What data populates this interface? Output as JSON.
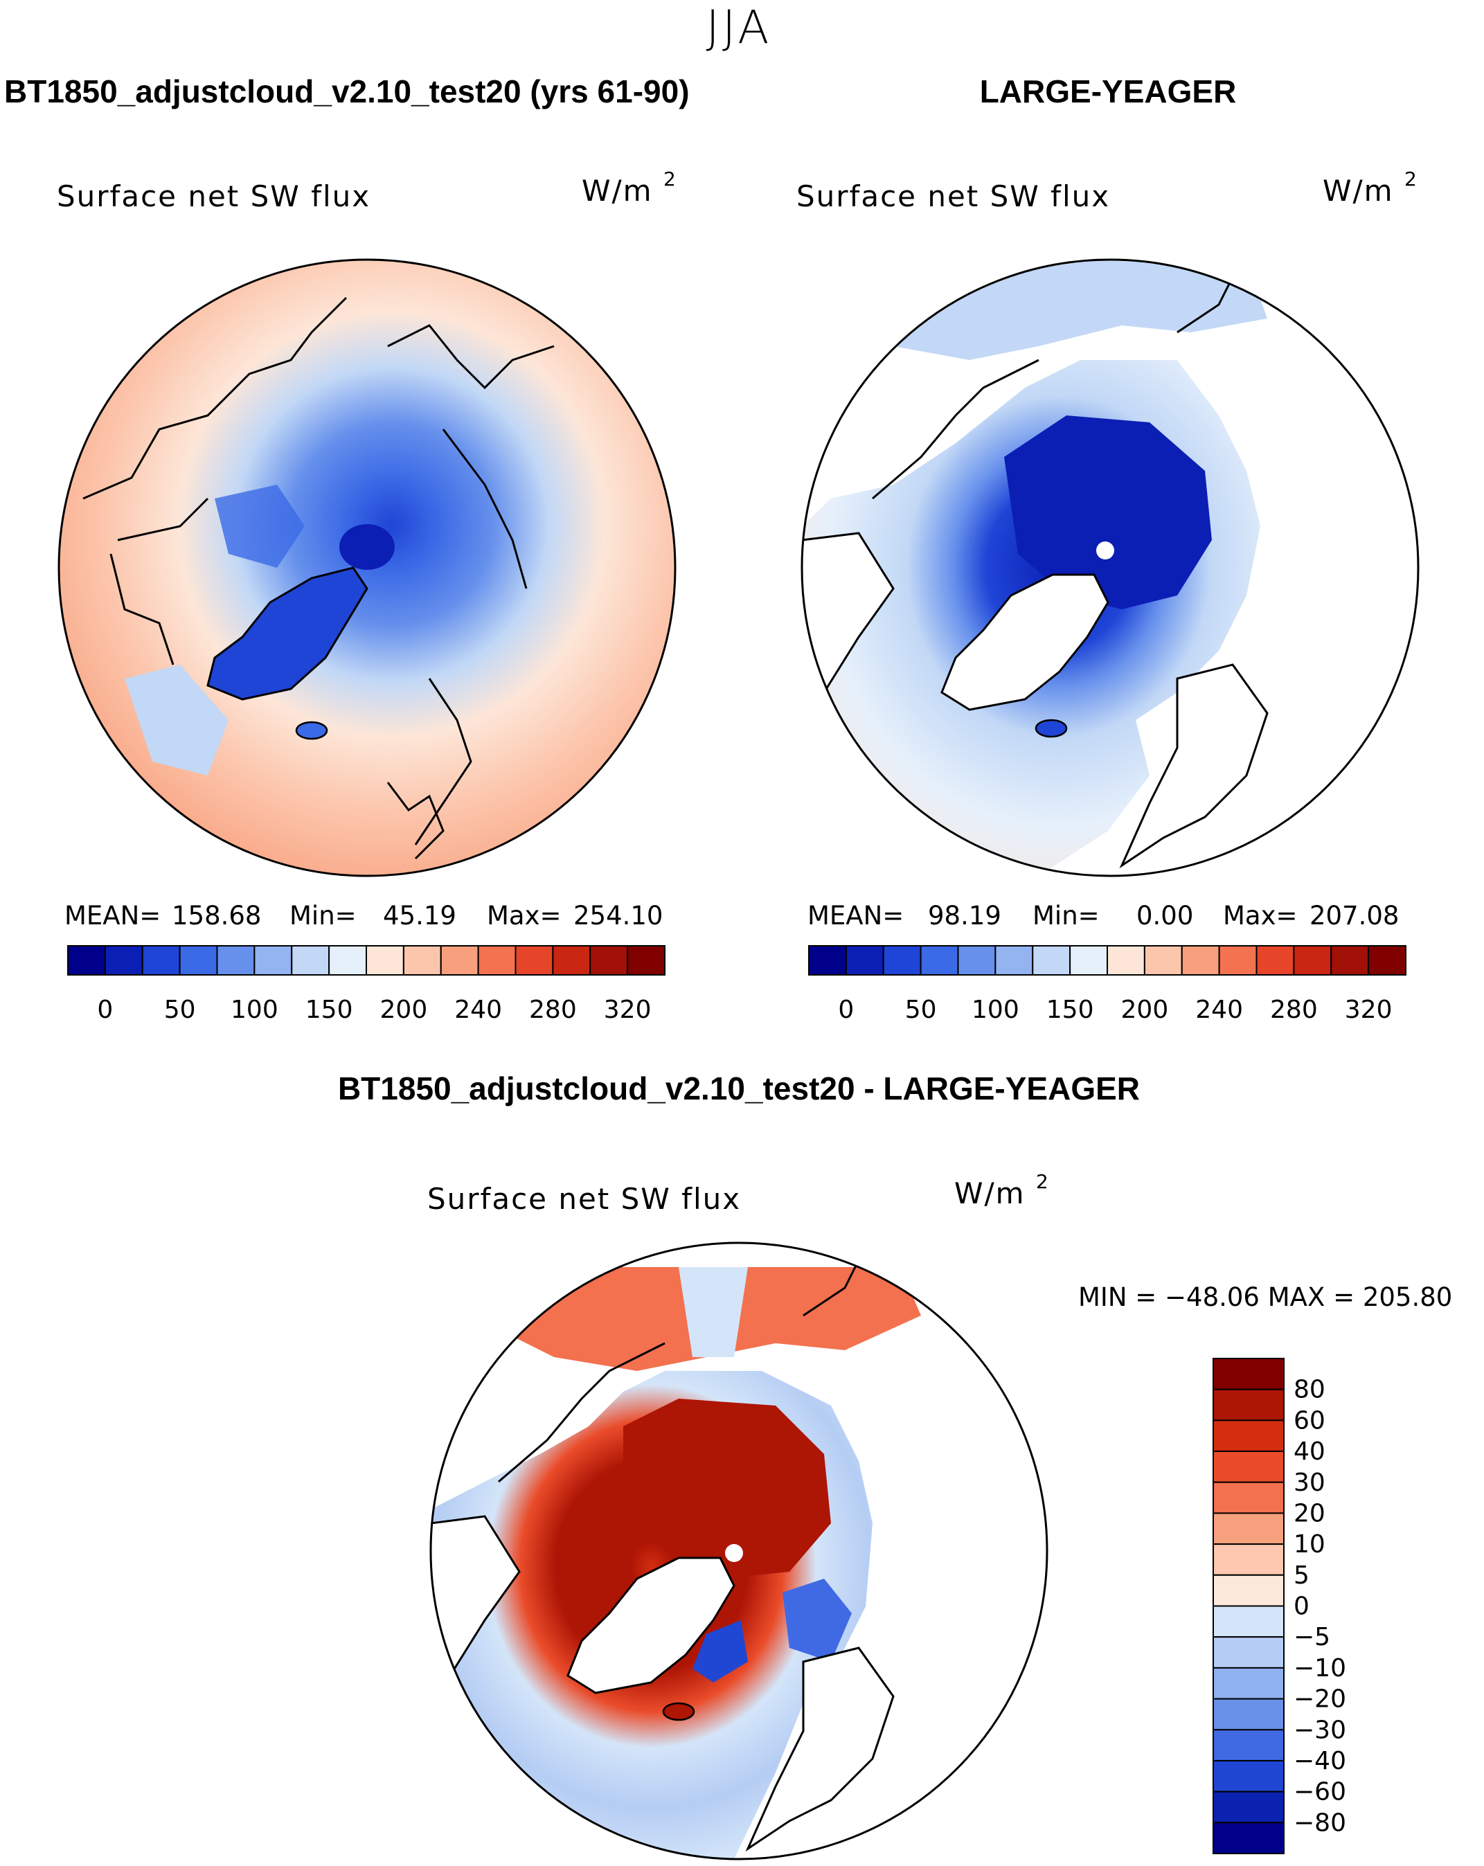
{
  "season_title": "JJA",
  "panel_left": {
    "title": "BT1850_adjustcloud_v2.10_test20 (yrs 61-90)",
    "variable": "Surface net SW flux",
    "units": "W/m",
    "units_sup": "2",
    "stats": {
      "mean_label": "MEAN=",
      "mean": "158.68",
      "min_label": "Min=",
      "min": "45.19",
      "max_label": "Max=",
      "max": "254.10"
    }
  },
  "panel_right": {
    "title": "LARGE-YEAGER",
    "variable": "Surface net SW flux",
    "units": "W/m",
    "units_sup": "2",
    "stats": {
      "mean_label": "MEAN=",
      "mean": "98.19",
      "min_label": "Min=",
      "min": "0.00",
      "max_label": "Max=",
      "max": "207.08"
    }
  },
  "panel_diff": {
    "title": "BT1850_adjustcloud_v2.10_test20 - LARGE-YEAGER",
    "variable": "Surface net SW flux",
    "units": "W/m",
    "units_sup": "2",
    "minmax_text": "MIN = −48.06 MAX = 205.80"
  },
  "chart_data": [
    {
      "type": "heatmap",
      "projection": "north polar stereographic",
      "title": "BT1850_adjustcloud_v2.10_test20 (yrs 61-90)",
      "variable": "Surface net SW flux",
      "units": "W/m2",
      "mean": 158.68,
      "min": 45.19,
      "max": 254.1,
      "colorbar": {
        "ticks": [
          "0",
          "50",
          "100",
          "150",
          "200",
          "240",
          "280",
          "320"
        ],
        "colors": [
          "#00008b",
          "#0b1fb5",
          "#1f45d6",
          "#3b6ae6",
          "#6690ec",
          "#93b3f1",
          "#c2d8f6",
          "#e6f0fb",
          "#fde6d8",
          "#fcc6ad",
          "#f8a07d",
          "#f3724f",
          "#e6452a",
          "#ca2712",
          "#a21107",
          "#800000"
        ]
      }
    },
    {
      "type": "heatmap",
      "projection": "north polar stereographic",
      "title": "LARGE-YEAGER",
      "variable": "Surface net SW flux",
      "units": "W/m2",
      "mean": 98.19,
      "min": 0.0,
      "max": 207.08,
      "colorbar": {
        "ticks": [
          "0",
          "50",
          "100",
          "150",
          "200",
          "240",
          "280",
          "320"
        ],
        "colors": [
          "#00008b",
          "#0b1fb5",
          "#1f45d6",
          "#3b6ae6",
          "#6690ec",
          "#93b3f1",
          "#c2d8f6",
          "#e6f0fb",
          "#fde6d8",
          "#fcc6ad",
          "#f8a07d",
          "#f3724f",
          "#e6452a",
          "#ca2712",
          "#a21107",
          "#800000"
        ]
      }
    },
    {
      "type": "heatmap",
      "projection": "north polar stereographic",
      "title": "BT1850_adjustcloud_v2.10_test20 - LARGE-YEAGER",
      "variable": "Surface net SW flux",
      "units": "W/m2",
      "min": -48.06,
      "max": 205.8,
      "colorbar": {
        "ticks": [
          "80",
          "60",
          "40",
          "30",
          "20",
          "10",
          "5",
          "0",
          "−5",
          "−10",
          "−20",
          "−30",
          "−40",
          "−60",
          "−80"
        ],
        "colors": [
          "#800000",
          "#ad1505",
          "#d42e10",
          "#ea4c2a",
          "#f3714e",
          "#f8a17e",
          "#fcc8b0",
          "#fde9dc",
          "#d4e5f9",
          "#b5cdf4",
          "#91b2f0",
          "#6a91ea",
          "#3f6ae4",
          "#1f47d4",
          "#0b22b0",
          "#00008b"
        ]
      }
    }
  ]
}
